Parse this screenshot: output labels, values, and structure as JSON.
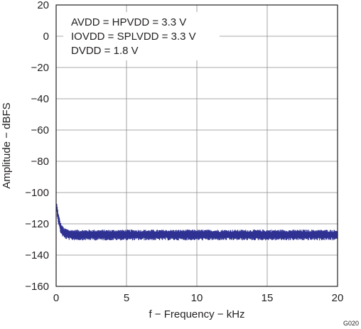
{
  "chart_data": {
    "type": "line",
    "title": "",
    "xlabel": "f − Frequency − kHz",
    "ylabel": "Amplitude − dBFS",
    "xlim": [
      0,
      20
    ],
    "ylim": [
      -160,
      20
    ],
    "xticks": [
      0,
      5,
      10,
      15,
      20
    ],
    "yticks": [
      20,
      0,
      -20,
      -40,
      -60,
      -80,
      -100,
      -120,
      -140,
      -160
    ],
    "xtick_labels": [
      "0",
      "5",
      "10",
      "15",
      "20"
    ],
    "ytick_labels": [
      "20",
      "0",
      "−20",
      "−40",
      "−60",
      "−80",
      "−100",
      "−120",
      "−140",
      "−160"
    ],
    "grid": true,
    "legend": "none",
    "series_color": "#2e3192",
    "annotations": [
      "AVDD = HPVDD = 3.3 V",
      "IOVDD = SPLVDD = 3.3 V",
      "DVDD = 1.8 V"
    ],
    "figure_id": "G020",
    "series": [
      {
        "x": [
          0.05,
          0.1,
          0.15,
          0.2,
          0.25,
          0.3,
          0.4,
          0.5,
          0.6,
          0.8,
          1.0,
          1.5,
          2.0,
          3.0,
          4.0,
          5.0,
          6.0,
          7.0,
          8.0,
          9.0,
          10.0,
          11.0,
          12.0,
          13.0,
          14.0,
          15.0,
          16.0,
          17.0,
          18.0,
          19.0,
          20.0
        ],
        "y": [
          -110,
          -113,
          -116,
          -118,
          -120,
          -122,
          -124,
          -125,
          -126,
          -126.5,
          -127,
          -127,
          -127,
          -127,
          -127,
          -127,
          -127,
          -127,
          -127,
          -127,
          -127,
          -127,
          -127,
          -127,
          -127,
          -127,
          -127,
          -127,
          -127,
          -127,
          -127
        ],
        "spread": [
          3,
          3,
          3,
          3,
          3,
          3,
          3,
          3,
          3,
          3,
          3,
          3,
          3,
          3,
          3,
          3,
          3,
          3,
          3,
          3,
          3,
          3,
          3,
          3,
          3,
          3,
          3,
          3,
          3,
          3,
          3
        ]
      }
    ]
  }
}
